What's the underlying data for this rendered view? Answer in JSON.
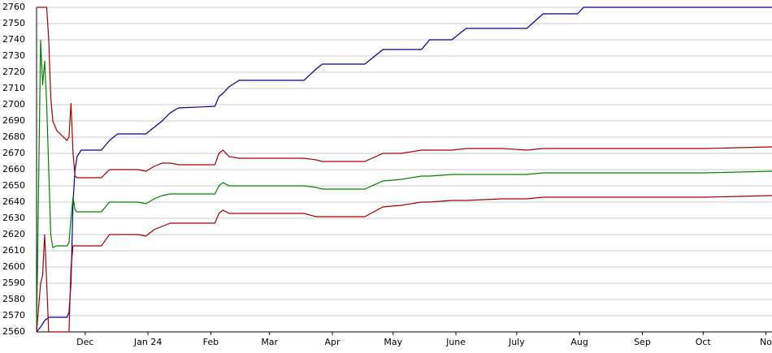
{
  "chart_data": {
    "type": "line",
    "x": [
      0,
      2,
      3,
      4,
      5,
      6,
      7,
      8,
      10,
      15,
      16,
      17,
      18,
      19,
      20,
      22,
      32,
      36,
      40,
      50,
      54,
      58,
      62,
      66,
      70,
      88,
      90,
      92,
      95,
      100,
      132,
      138,
      141,
      150,
      162,
      171,
      180,
      190,
      194,
      205,
      212,
      230,
      242,
      250,
      260,
      267,
      270,
      300,
      330,
      363
    ],
    "series": [
      {
        "color": "#00008b",
        "values": [
          2560,
          2563,
          2565,
          2567,
          2568,
          2569,
          2569,
          2569,
          2569,
          2569,
          2572,
          2590,
          2640,
          2660,
          2668,
          2672,
          2672,
          2678,
          2682,
          2682,
          2682,
          2686,
          2690,
          2695,
          2698,
          2699,
          2705,
          2707,
          2711,
          2715,
          2715,
          2722,
          2725,
          2725,
          2725,
          2734,
          2734,
          2734,
          2740,
          2740,
          2747,
          2747,
          2747,
          2756,
          2756,
          2756,
          2760,
          2760,
          2760,
          2760
        ]
      },
      {
        "color": "#a00000",
        "values": [
          2760,
          2760,
          2760,
          2760,
          2760,
          2740,
          2705,
          2690,
          2684,
          2678,
          2680,
          2701,
          2670,
          2656,
          2655,
          2655,
          2655,
          2660,
          2660,
          2660,
          2659,
          2662,
          2664,
          2664,
          2663,
          2663,
          2670,
          2672,
          2668,
          2667,
          2667,
          2666,
          2665,
          2665,
          2665,
          2670,
          2670,
          2672,
          2672,
          2672,
          2673,
          2673,
          2672,
          2673,
          2673,
          2673,
          2673,
          2673,
          2673,
          2674
        ]
      },
      {
        "color": "#008000",
        "values": [
          2560,
          2740,
          2712,
          2727,
          2700,
          2660,
          2620,
          2612,
          2613,
          2613,
          2615,
          2630,
          2643,
          2635,
          2634,
          2634,
          2634,
          2640,
          2640,
          2640,
          2639,
          2642,
          2644,
          2645,
          2645,
          2645,
          2650,
          2652,
          2650,
          2650,
          2650,
          2649,
          2648,
          2648,
          2648,
          2653,
          2654,
          2656,
          2656,
          2657,
          2657,
          2657,
          2657,
          2658,
          2658,
          2658,
          2658,
          2658,
          2658,
          2659
        ]
      },
      {
        "color": "#a00000",
        "values": [
          2560,
          2590,
          2595,
          2620,
          2590,
          2560,
          2560,
          2560,
          2560,
          2560,
          2560,
          2600,
          2613,
          2613,
          2613,
          2613,
          2613,
          2620,
          2620,
          2620,
          2619,
          2623,
          2625,
          2627,
          2627,
          2627,
          2633,
          2635,
          2633,
          2633,
          2633,
          2631,
          2631,
          2631,
          2631,
          2637,
          2638,
          2640,
          2640,
          2641,
          2641,
          2642,
          2642,
          2643,
          2643,
          2643,
          2643,
          2643,
          2643,
          2644
        ]
      }
    ],
    "xlim": [
      0,
      363
    ],
    "xticks": [
      {
        "value": 24,
        "label": "Dec"
      },
      {
        "value": 55,
        "label": "Jan 24"
      },
      {
        "value": 86,
        "label": "Feb"
      },
      {
        "value": 115,
        "label": "Mar"
      },
      {
        "value": 146,
        "label": "Apr"
      },
      {
        "value": 176,
        "label": "May"
      },
      {
        "value": 207,
        "label": "June"
      },
      {
        "value": 237,
        "label": "July"
      },
      {
        "value": 268,
        "label": "Aug"
      },
      {
        "value": 299,
        "label": "Sep"
      },
      {
        "value": 329,
        "label": "Oct"
      },
      {
        "value": 360,
        "label": "No"
      }
    ],
    "ylim": [
      2560,
      2760
    ],
    "yticks": [
      2560,
      2570,
      2580,
      2590,
      2600,
      2610,
      2620,
      2630,
      2640,
      2650,
      2660,
      2670,
      2680,
      2690,
      2700,
      2710,
      2720,
      2730,
      2740,
      2750,
      2760
    ],
    "grid": true
  }
}
